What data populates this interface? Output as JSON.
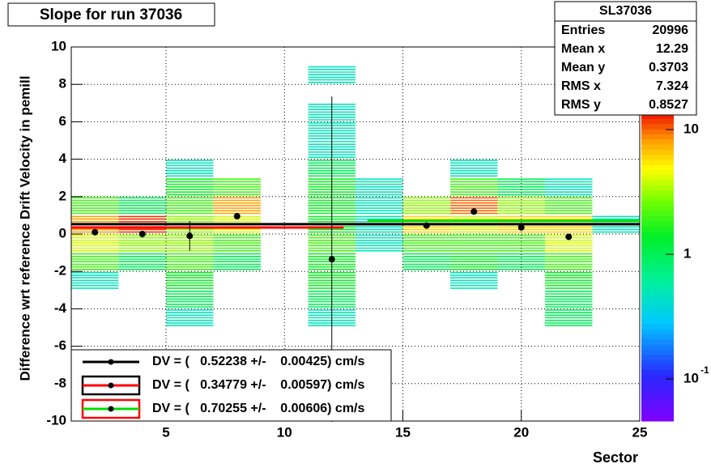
{
  "chart_data": {
    "type": "heatmap",
    "title": "Slope for run 37036",
    "x_label": "Sector",
    "y_label": "Difference wrt reference Drift Velocity in pemill",
    "xlim": [
      1,
      25
    ],
    "ylim": [
      -10,
      10
    ],
    "xticks": [
      5,
      10,
      15,
      20,
      25
    ],
    "yticks": [
      -10,
      -8,
      -6,
      -4,
      -2,
      0,
      2,
      4,
      6,
      8,
      10
    ],
    "grid": true,
    "x_bins": [
      1,
      3,
      5,
      7,
      9,
      11,
      13,
      15,
      17,
      19,
      21,
      23,
      25
    ],
    "y_bins": [
      -5,
      -4,
      -3,
      -2,
      -1,
      0,
      1,
      2,
      3,
      4,
      5,
      6,
      7,
      8,
      9
    ],
    "z": [
      [
        0,
        0,
        0.5,
        2,
        4,
        8,
        2,
        0,
        0,
        0,
        0,
        0,
        0,
        0
      ],
      [
        0,
        0,
        0,
        1,
        3,
        12,
        1,
        0,
        0,
        0,
        0,
        0,
        0,
        0
      ],
      [
        0.5,
        1,
        1.5,
        2,
        3,
        3,
        2,
        1.5,
        0.5,
        0,
        0,
        0,
        0,
        0
      ],
      [
        0,
        0,
        0,
        1,
        2,
        4,
        8,
        2,
        0,
        0,
        0,
        0,
        0,
        0
      ],
      [
        0,
        0,
        0,
        0,
        0,
        0,
        0,
        0,
        0,
        0,
        0,
        0,
        0,
        0
      ],
      [
        0.5,
        1,
        1.5,
        1.5,
        2,
        1.5,
        1.5,
        1.5,
        1,
        0.5,
        0.5,
        0.5,
        0,
        0.5
      ],
      [
        0,
        0,
        0,
        0,
        0.5,
        0.5,
        0.5,
        0.5,
        0,
        0,
        0,
        0,
        0,
        0
      ],
      [
        0,
        0,
        0,
        1,
        2,
        6,
        3,
        0,
        0,
        0,
        0,
        0,
        0,
        0
      ],
      [
        0,
        0,
        0.5,
        1.5,
        2,
        4,
        10,
        2,
        0.5,
        0,
        0,
        0,
        0,
        0
      ],
      [
        0,
        0,
        0,
        1,
        2,
        6,
        3,
        1,
        0,
        0,
        0,
        0,
        0,
        0
      ],
      [
        1,
        1,
        1.5,
        2,
        4,
        6,
        2,
        0.5,
        0,
        0,
        0,
        0,
        0,
        0
      ],
      [
        0,
        0,
        0,
        0,
        0,
        0.5,
        0,
        0,
        0,
        0,
        0,
        0,
        0,
        0
      ]
    ],
    "zlim": [
      0.046,
      13.5
    ],
    "zlog": true,
    "zticks": [
      {
        "value": 0.1,
        "label": "10",
        "exponent": "-1"
      },
      1,
      10
    ],
    "profile": {
      "x": [
        2,
        4,
        6,
        8,
        12,
        16,
        18,
        20,
        22
      ],
      "values": [
        0.1,
        0.0,
        -0.1,
        0.95,
        -1.35,
        0.45,
        1.2,
        0.35,
        -0.15
      ],
      "errors": [
        0.1,
        0.1,
        0.8,
        0.1,
        8.7,
        0.1,
        0.1,
        0.1,
        0.1
      ]
    },
    "series": [
      {
        "name": "DV = (   0.52238 +/-    0.00425) cm/s",
        "color": "#000000",
        "box": null,
        "value": 0.52238,
        "xrange": [
          1,
          25
        ]
      },
      {
        "name": "DV = (   0.34779 +/-    0.00597) cm/s",
        "color": "#ff0000",
        "box": "#000000",
        "value": 0.34779,
        "xrange": [
          1,
          12.5
        ]
      },
      {
        "name": "DV = (   0.70255 +/-    0.00606) cm/s",
        "color": "#00dd00",
        "box": "#ff0000",
        "value": 0.70255,
        "xrange": [
          13.5,
          25
        ]
      }
    ],
    "stats": {
      "title": "SL37036",
      "rows": [
        [
          "Entries",
          "20996"
        ],
        [
          "Mean x",
          "12.29"
        ],
        [
          "Mean y",
          "0.3703"
        ],
        [
          "RMS x",
          "7.324"
        ],
        [
          "RMS y",
          "0.8527"
        ]
      ]
    }
  }
}
